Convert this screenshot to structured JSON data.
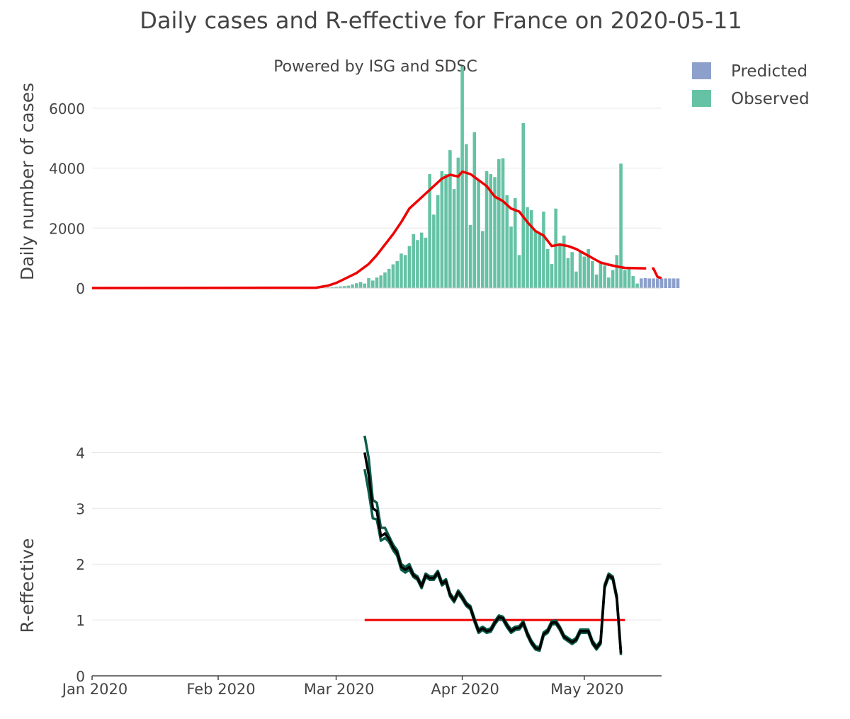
{
  "title": "Daily cases and R-effective for France on 2020-05-11",
  "subtitle": "Powered by ISG and SDSC",
  "colors": {
    "observed": "#66c2a5",
    "predicted": "#8da0cb",
    "smoothed": "#ee0000",
    "r_line": "#000000",
    "r_band": "#0b5d4a",
    "threshold": "#ee0000",
    "grid": "#e8e8e8"
  },
  "chart_data": [
    {
      "type": "bar",
      "ylabel": "Daily number of cases",
      "xlabel": "",
      "ylim": [
        0,
        7200
      ],
      "yticks": [
        0,
        2000,
        4000,
        6000
      ],
      "xlim": [
        "2020-01-01",
        "2020-05-19"
      ],
      "legend": {
        "placement": "top-right",
        "entries": [
          "Predicted",
          "Observed"
        ]
      },
      "grid": true,
      "observed": {
        "name": "Observed",
        "start_date": "2020-02-26",
        "values": [
          10,
          15,
          20,
          30,
          40,
          55,
          65,
          80,
          120,
          160,
          200,
          150,
          330,
          250,
          350,
          420,
          520,
          640,
          790,
          900,
          1150,
          1100,
          1400,
          1800,
          1600,
          1850,
          1680,
          3800,
          2450,
          3100,
          3900,
          3800,
          4600,
          3300,
          4350,
          7400,
          4800,
          2100,
          5200,
          3600,
          1900,
          3900,
          3800,
          3700,
          4300,
          4330,
          3100,
          2050,
          3000,
          1100,
          5500,
          2700,
          2600,
          1900,
          1800,
          2550,
          1300,
          800,
          2650,
          1500,
          1750,
          1000,
          1200,
          550,
          1200,
          1050,
          1300,
          900,
          450,
          850,
          750,
          350,
          600,
          1100,
          4150,
          600,
          650,
          400,
          150
        ]
      },
      "predicted": {
        "name": "Predicted",
        "start_date": "2020-05-15",
        "values": [
          320,
          330,
          320,
          320,
          320,
          320,
          320,
          320,
          320,
          320
        ]
      },
      "smoothed": {
        "points": [
          [
            "2020-01-01",
            0
          ],
          [
            "2020-02-25",
            10
          ],
          [
            "2020-02-28",
            80
          ],
          [
            "2020-03-01",
            170
          ],
          [
            "2020-03-03",
            300
          ],
          [
            "2020-03-06",
            500
          ],
          [
            "2020-03-09",
            800
          ],
          [
            "2020-03-11",
            1100
          ],
          [
            "2020-03-13",
            1450
          ],
          [
            "2020-03-15",
            1800
          ],
          [
            "2020-03-17",
            2200
          ],
          [
            "2020-03-19",
            2650
          ],
          [
            "2020-03-21",
            2900
          ],
          [
            "2020-03-23",
            3150
          ],
          [
            "2020-03-25",
            3400
          ],
          [
            "2020-03-27",
            3650
          ],
          [
            "2020-03-29",
            3780
          ],
          [
            "2020-03-31",
            3720
          ],
          [
            "2020-04-01",
            3880
          ],
          [
            "2020-04-03",
            3800
          ],
          [
            "2020-04-05",
            3600
          ],
          [
            "2020-04-07",
            3400
          ],
          [
            "2020-04-09",
            3050
          ],
          [
            "2020-04-11",
            2900
          ],
          [
            "2020-04-13",
            2650
          ],
          [
            "2020-04-15",
            2550
          ],
          [
            "2020-04-17",
            2200
          ],
          [
            "2020-04-19",
            1900
          ],
          [
            "2020-04-21",
            1750
          ],
          [
            "2020-04-23",
            1400
          ],
          [
            "2020-04-25",
            1450
          ],
          [
            "2020-04-27",
            1400
          ],
          [
            "2020-04-29",
            1300
          ],
          [
            "2020-05-01",
            1150
          ],
          [
            "2020-05-03",
            1000
          ],
          [
            "2020-05-05",
            850
          ],
          [
            "2020-05-07",
            780
          ],
          [
            "2020-05-09",
            720
          ],
          [
            "2020-05-11",
            670
          ]
        ],
        "dashed_points": [
          [
            "2020-05-11",
            670
          ],
          [
            "2020-05-18",
            650
          ],
          [
            "2020-05-19",
            370
          ],
          [
            "2020-05-20",
            330
          ]
        ]
      }
    },
    {
      "type": "line",
      "ylabel": "R-effective",
      "xlabel": "",
      "ylim": [
        0,
        4.5
      ],
      "yticks": [
        0,
        1,
        2,
        3,
        4
      ],
      "xticks": [
        "Jan 2020",
        "Feb 2020",
        "Mar 2020",
        "Apr 2020",
        "May 2020"
      ],
      "grid": true,
      "threshold": {
        "y": 1,
        "from": "2020-03-08",
        "to": "2020-05-11"
      },
      "r_effective": {
        "start_date": "2020-03-08",
        "values": [
          4.0,
          3.6,
          3.0,
          2.95,
          2.5,
          2.55,
          2.45,
          2.3,
          2.2,
          1.95,
          1.9,
          1.95,
          1.8,
          1.75,
          1.6,
          1.8,
          1.75,
          1.75,
          1.85,
          1.65,
          1.7,
          1.45,
          1.35,
          1.5,
          1.4,
          1.28,
          1.22,
          1.0,
          0.8,
          0.85,
          0.8,
          0.82,
          0.95,
          1.05,
          1.03,
          0.9,
          0.8,
          0.85,
          0.86,
          0.95,
          0.75,
          0.6,
          0.5,
          0.48,
          0.75,
          0.8,
          0.95,
          0.96,
          0.85,
          0.7,
          0.65,
          0.6,
          0.65,
          0.8,
          0.8,
          0.8,
          0.6,
          0.5,
          0.6,
          1.6,
          1.8,
          1.75,
          1.4,
          0.4
        ]
      },
      "r_band": {
        "upper_start": [
          4.3,
          3.9,
          3.15,
          3.1,
          2.65,
          2.65,
          2.5,
          2.35,
          2.25,
          2.0,
          1.95,
          2.0
        ],
        "lower_start": [
          3.7,
          3.3,
          2.82,
          2.8,
          2.42,
          2.47,
          2.4,
          2.25,
          2.15,
          1.9,
          1.85,
          1.9
        ]
      }
    }
  ]
}
